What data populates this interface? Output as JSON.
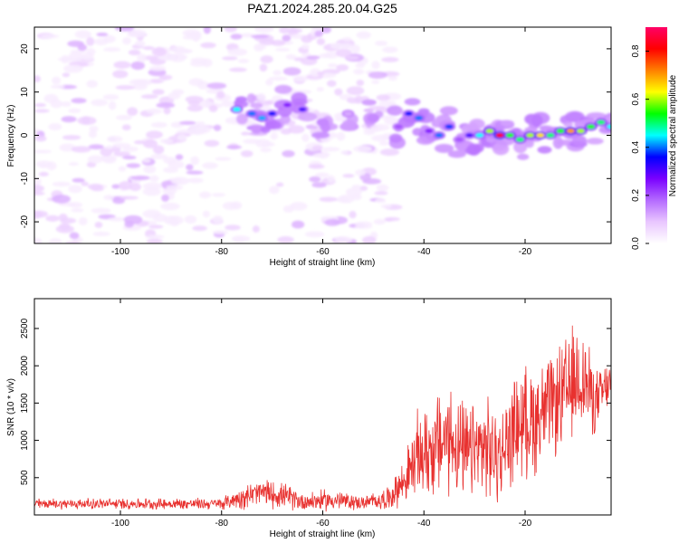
{
  "title": "PAZ1.2024.285.20.04.G25",
  "chart_data": [
    {
      "type": "heatmap",
      "xlabel": "Height of straight line (km)",
      "ylabel": "Frequency (Hz)",
      "xlim": [
        -117,
        -3
      ],
      "ylim": [
        -25,
        25
      ],
      "xticks": [
        -100,
        -80,
        -60,
        -40,
        -20
      ],
      "yticks": [
        -20,
        -10,
        0,
        10,
        20
      ],
      "colorbar": {
        "label": "Normalized spectral amplitude",
        "range": [
          0,
          0.9
        ],
        "ticks": [
          0,
          0.2,
          0.4,
          0.6,
          0.8
        ],
        "colors": [
          "#ffffff",
          "#e9c6ff",
          "#b46aff",
          "#7a00ff",
          "#0000ff",
          "#00ffff",
          "#00ff00",
          "#ffff00",
          "#ff8000",
          "#ff0000",
          "#ff0066"
        ]
      },
      "ridge": [
        {
          "x": -77,
          "y": 6,
          "v": 0.45
        },
        {
          "x": -74,
          "y": 5,
          "v": 0.4
        },
        {
          "x": -72,
          "y": 4,
          "v": 0.42
        },
        {
          "x": -70,
          "y": 5,
          "v": 0.35
        },
        {
          "x": -67,
          "y": 7,
          "v": 0.25
        },
        {
          "x": -64,
          "y": 6,
          "v": 0.3
        },
        {
          "x": -60,
          "y": 3,
          "v": 0.15
        },
        {
          "x": -55,
          "y": 5,
          "v": 0.12
        },
        {
          "x": -50,
          "y": 4,
          "v": 0.15
        },
        {
          "x": -45,
          "y": 2,
          "v": 0.2
        },
        {
          "x": -43,
          "y": 5,
          "v": 0.35
        },
        {
          "x": -41,
          "y": 4,
          "v": 0.4
        },
        {
          "x": -39,
          "y": 1,
          "v": 0.25
        },
        {
          "x": -37,
          "y": 0,
          "v": 0.4
        },
        {
          "x": -35,
          "y": 2,
          "v": 0.38
        },
        {
          "x": -33,
          "y": -1,
          "v": 0.2
        },
        {
          "x": -31,
          "y": 0,
          "v": 0.3
        },
        {
          "x": -29,
          "y": 0,
          "v": 0.45
        },
        {
          "x": -27,
          "y": 1,
          "v": 0.6
        },
        {
          "x": -25,
          "y": 0,
          "v": 0.85
        },
        {
          "x": -23,
          "y": 0,
          "v": 0.55
        },
        {
          "x": -21,
          "y": -1,
          "v": 0.5
        },
        {
          "x": -19,
          "y": 0,
          "v": 0.6
        },
        {
          "x": -17,
          "y": 0,
          "v": 0.65
        },
        {
          "x": -15,
          "y": 0,
          "v": 0.5
        },
        {
          "x": -13,
          "y": 1,
          "v": 0.55
        },
        {
          "x": -11,
          "y": 1,
          "v": 0.7
        },
        {
          "x": -9,
          "y": 1,
          "v": 0.6
        },
        {
          "x": -7,
          "y": 2,
          "v": 0.55
        },
        {
          "x": -5,
          "y": 3,
          "v": 0.5
        },
        {
          "x": -3,
          "y": 2,
          "v": 0.45
        }
      ],
      "noise_region_x": [
        -117,
        -46
      ]
    },
    {
      "type": "line",
      "xlabel": "Height of straight line (km)",
      "ylabel": "SNR (10 * v/v)",
      "xlim": [
        -117,
        -3
      ],
      "ylim": [
        0,
        2900
      ],
      "xticks": [
        -100,
        -80,
        -60,
        -40,
        -20
      ],
      "yticks": [
        500,
        1000,
        1500,
        2000,
        2500
      ],
      "color": "#e8312f",
      "envelope": [
        {
          "x": -117,
          "mean": 150,
          "amp": 80
        },
        {
          "x": -80,
          "mean": 150,
          "amp": 90
        },
        {
          "x": -76,
          "mean": 240,
          "amp": 180
        },
        {
          "x": -72,
          "mean": 300,
          "amp": 220
        },
        {
          "x": -68,
          "mean": 260,
          "amp": 200
        },
        {
          "x": -64,
          "mean": 180,
          "amp": 150
        },
        {
          "x": -58,
          "mean": 200,
          "amp": 170
        },
        {
          "x": -52,
          "mean": 160,
          "amp": 100
        },
        {
          "x": -47,
          "mean": 220,
          "amp": 180
        },
        {
          "x": -44,
          "mean": 450,
          "amp": 350
        },
        {
          "x": -41,
          "mean": 800,
          "amp": 700
        },
        {
          "x": -38,
          "mean": 900,
          "amp": 800
        },
        {
          "x": -35,
          "mean": 1050,
          "amp": 900
        },
        {
          "x": -32,
          "mean": 800,
          "amp": 750
        },
        {
          "x": -28,
          "mean": 900,
          "amp": 800
        },
        {
          "x": -25,
          "mean": 750,
          "amp": 700
        },
        {
          "x": -22,
          "mean": 1200,
          "amp": 800
        },
        {
          "x": -18,
          "mean": 1300,
          "amp": 900
        },
        {
          "x": -15,
          "mean": 1450,
          "amp": 750
        },
        {
          "x": -12,
          "mean": 1600,
          "amp": 900
        },
        {
          "x": -9,
          "mean": 1900,
          "amp": 900
        },
        {
          "x": -6,
          "mean": 1500,
          "amp": 500
        },
        {
          "x": -3,
          "mean": 1800,
          "amp": 350
        }
      ]
    }
  ]
}
